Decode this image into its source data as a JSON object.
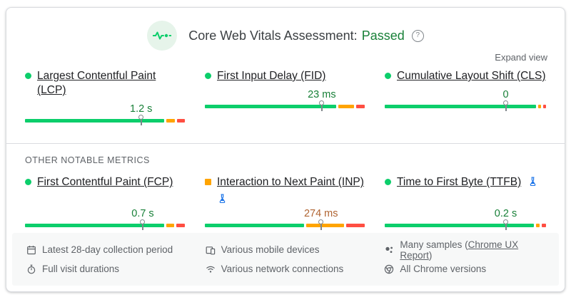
{
  "header": {
    "title": "Core Web Vitals Assessment:",
    "status": "Passed",
    "status_color": "#188038",
    "help_glyph": "?",
    "expand_label": "Expand view"
  },
  "section_label": "OTHER NOTABLE METRICS",
  "colors": {
    "good": "#0cce6b",
    "needs_improvement": "#ffa400",
    "poor": "#ff4e42",
    "good_text": "#188038",
    "ni_text": "#b06432",
    "flask_blue": "#1a73e8"
  },
  "metrics": [
    {
      "id": "lcp",
      "title": "Largest Contentful Paint (LCP)",
      "value": "1.2 s",
      "rating": "good",
      "indicator": "dot",
      "indicator_color": "#0cce6b",
      "value_color": "#188038",
      "flask": "none",
      "bar": {
        "marker_pct": 72,
        "segments": [
          {
            "name": "good",
            "color": "#0cce6b",
            "width_pct": 86.5
          },
          {
            "name": "needs-improvement",
            "color": "#ffa400",
            "width_pct": 5
          },
          {
            "name": "poor",
            "color": "#ff4e42",
            "width_pct": 5
          }
        ]
      }
    },
    {
      "id": "fid",
      "title": "First Input Delay (FID)",
      "value": "23 ms",
      "rating": "good",
      "indicator": "dot",
      "indicator_color": "#0cce6b",
      "value_color": "#188038",
      "flask": "none",
      "bar": {
        "marker_pct": 72.5,
        "segments": [
          {
            "name": "good",
            "color": "#0cce6b",
            "width_pct": 81.5
          },
          {
            "name": "needs-improvement",
            "color": "#ffa400",
            "width_pct": 9.5
          },
          {
            "name": "poor",
            "color": "#ff4e42",
            "width_pct": 5.5
          }
        ]
      }
    },
    {
      "id": "cls",
      "title": "Cumulative Layout Shift (CLS)",
      "value": "0",
      "rating": "good",
      "indicator": "dot",
      "indicator_color": "#0cce6b",
      "value_color": "#188038",
      "flask": "none",
      "bar": {
        "marker_pct": 75,
        "segments": [
          {
            "name": "good",
            "color": "#0cce6b",
            "width_pct": 94.5
          },
          {
            "name": "needs-improvement",
            "color": "#ffa400",
            "width_pct": 1.8
          },
          {
            "name": "poor",
            "color": "#ff4e42",
            "width_pct": 1.8
          }
        ]
      }
    },
    {
      "id": "fcp",
      "title": "First Contentful Paint (FCP)",
      "value": "0.7 s",
      "rating": "good",
      "indicator": "dot",
      "indicator_color": "#0cce6b",
      "value_color": "#188038",
      "flask": "none",
      "bar": {
        "marker_pct": 73,
        "segments": [
          {
            "name": "good",
            "color": "#0cce6b",
            "width_pct": 86.5
          },
          {
            "name": "needs-improvement",
            "color": "#ffa400",
            "width_pct": 4.5
          },
          {
            "name": "poor",
            "color": "#ff4e42",
            "width_pct": 5.5
          }
        ]
      }
    },
    {
      "id": "inp",
      "title": "Interaction to Next Paint (INP)",
      "value": "274 ms",
      "rating": "needs-improvement",
      "indicator": "square",
      "indicator_color": "#ffa400",
      "value_color": "#b06432",
      "flask": "below",
      "bar": {
        "marker_pct": 72,
        "segments": [
          {
            "name": "good",
            "color": "#0cce6b",
            "width_pct": 61.5
          },
          {
            "name": "needs-improvement",
            "color": "#ffa400",
            "width_pct": 23.5
          },
          {
            "name": "poor",
            "color": "#ff4e42",
            "width_pct": 11.5
          }
        ]
      }
    },
    {
      "id": "ttfb",
      "title": "Time to First Byte (TTFB)",
      "value": "0.2 s",
      "rating": "good",
      "indicator": "dot",
      "indicator_color": "#0cce6b",
      "value_color": "#188038",
      "flask": "inline",
      "bar": {
        "marker_pct": 75,
        "segments": [
          {
            "name": "good",
            "color": "#0cce6b",
            "width_pct": 92.5
          },
          {
            "name": "needs-improvement",
            "color": "#ffa400",
            "width_pct": 2.2
          },
          {
            "name": "poor",
            "color": "#ff4e42",
            "width_pct": 2.8
          }
        ]
      }
    }
  ],
  "footer": {
    "columns": [
      {
        "items": [
          {
            "icon": "calendar-icon",
            "label": "Latest 28-day collection period"
          },
          {
            "icon": "stopwatch-icon",
            "label": "Full visit durations"
          }
        ]
      },
      {
        "items": [
          {
            "icon": "devices-icon",
            "label": "Various mobile devices"
          },
          {
            "icon": "wifi-icon",
            "label": "Various network connections"
          }
        ]
      },
      {
        "items": [
          {
            "icon": "samples-icon",
            "label_prefix": "Many samples (",
            "link": "Chrome UX Report",
            "label_suffix": ")"
          },
          {
            "icon": "chrome-icon",
            "label": "All Chrome versions"
          }
        ]
      }
    ]
  }
}
